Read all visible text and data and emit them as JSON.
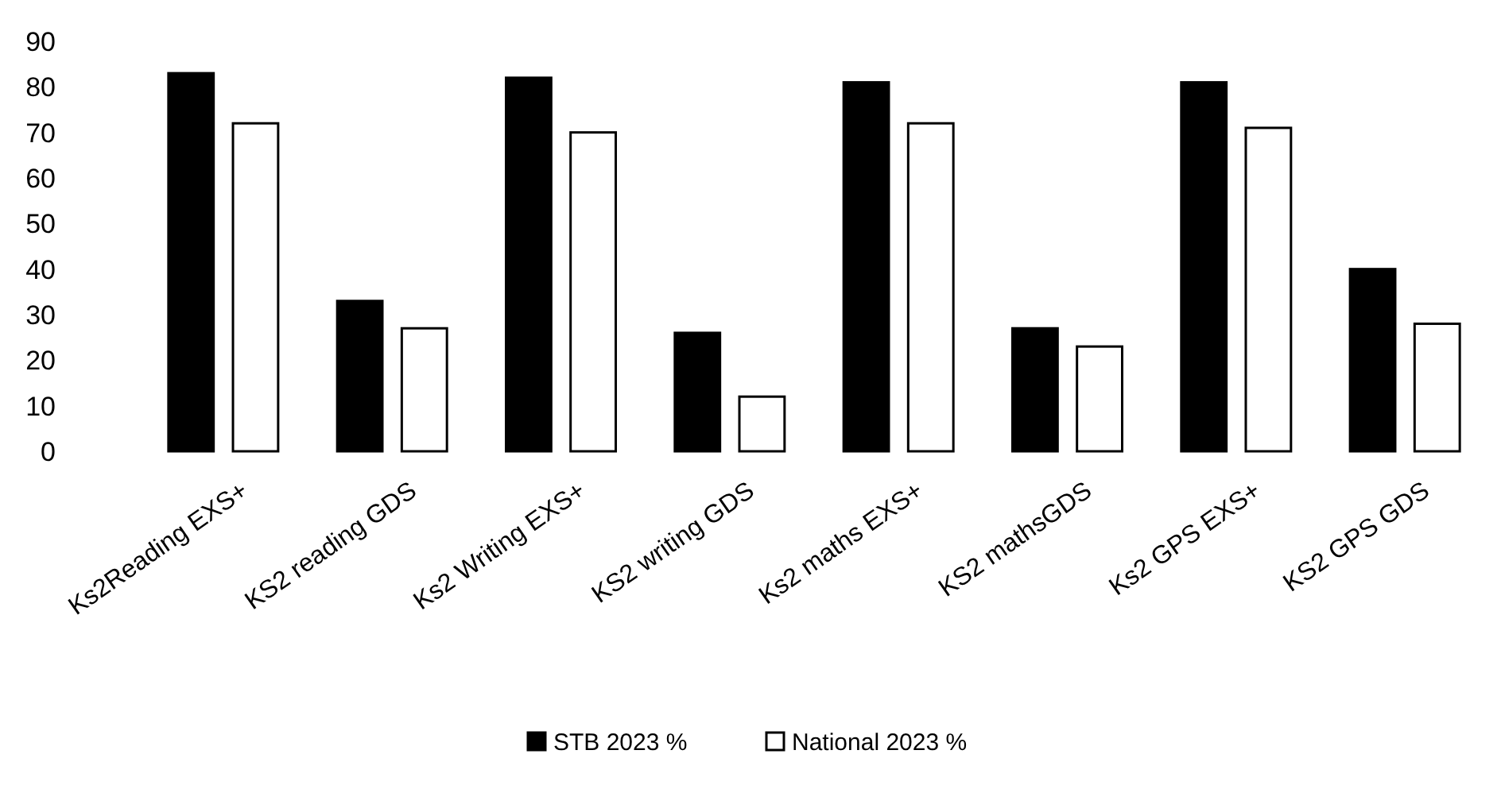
{
  "chart_data": {
    "type": "bar",
    "categories": [
      "Ks2Reading EXS+",
      "KS2 reading GDS",
      "Ks2 Writing EXS+",
      "KS2 writing GDS",
      "Ks2 maths EXS+",
      "KS2 mathsGDS",
      "Ks2 GPS EXS+",
      "KS2 GPS GDS"
    ],
    "series": [
      {
        "name": "STB 2023 %",
        "color": "#000000",
        "values": [
          83,
          33,
          82,
          26,
          81,
          27,
          81,
          40
        ]
      },
      {
        "name": "National 2023 %",
        "color": "#ffffff",
        "values": [
          72,
          27,
          70,
          12,
          72,
          23,
          71,
          28
        ]
      }
    ],
    "ylim": [
      0,
      90
    ],
    "yticks": [
      0,
      10,
      20,
      30,
      40,
      50,
      60,
      70,
      80,
      90
    ],
    "grid": false,
    "legend": "bottom"
  }
}
